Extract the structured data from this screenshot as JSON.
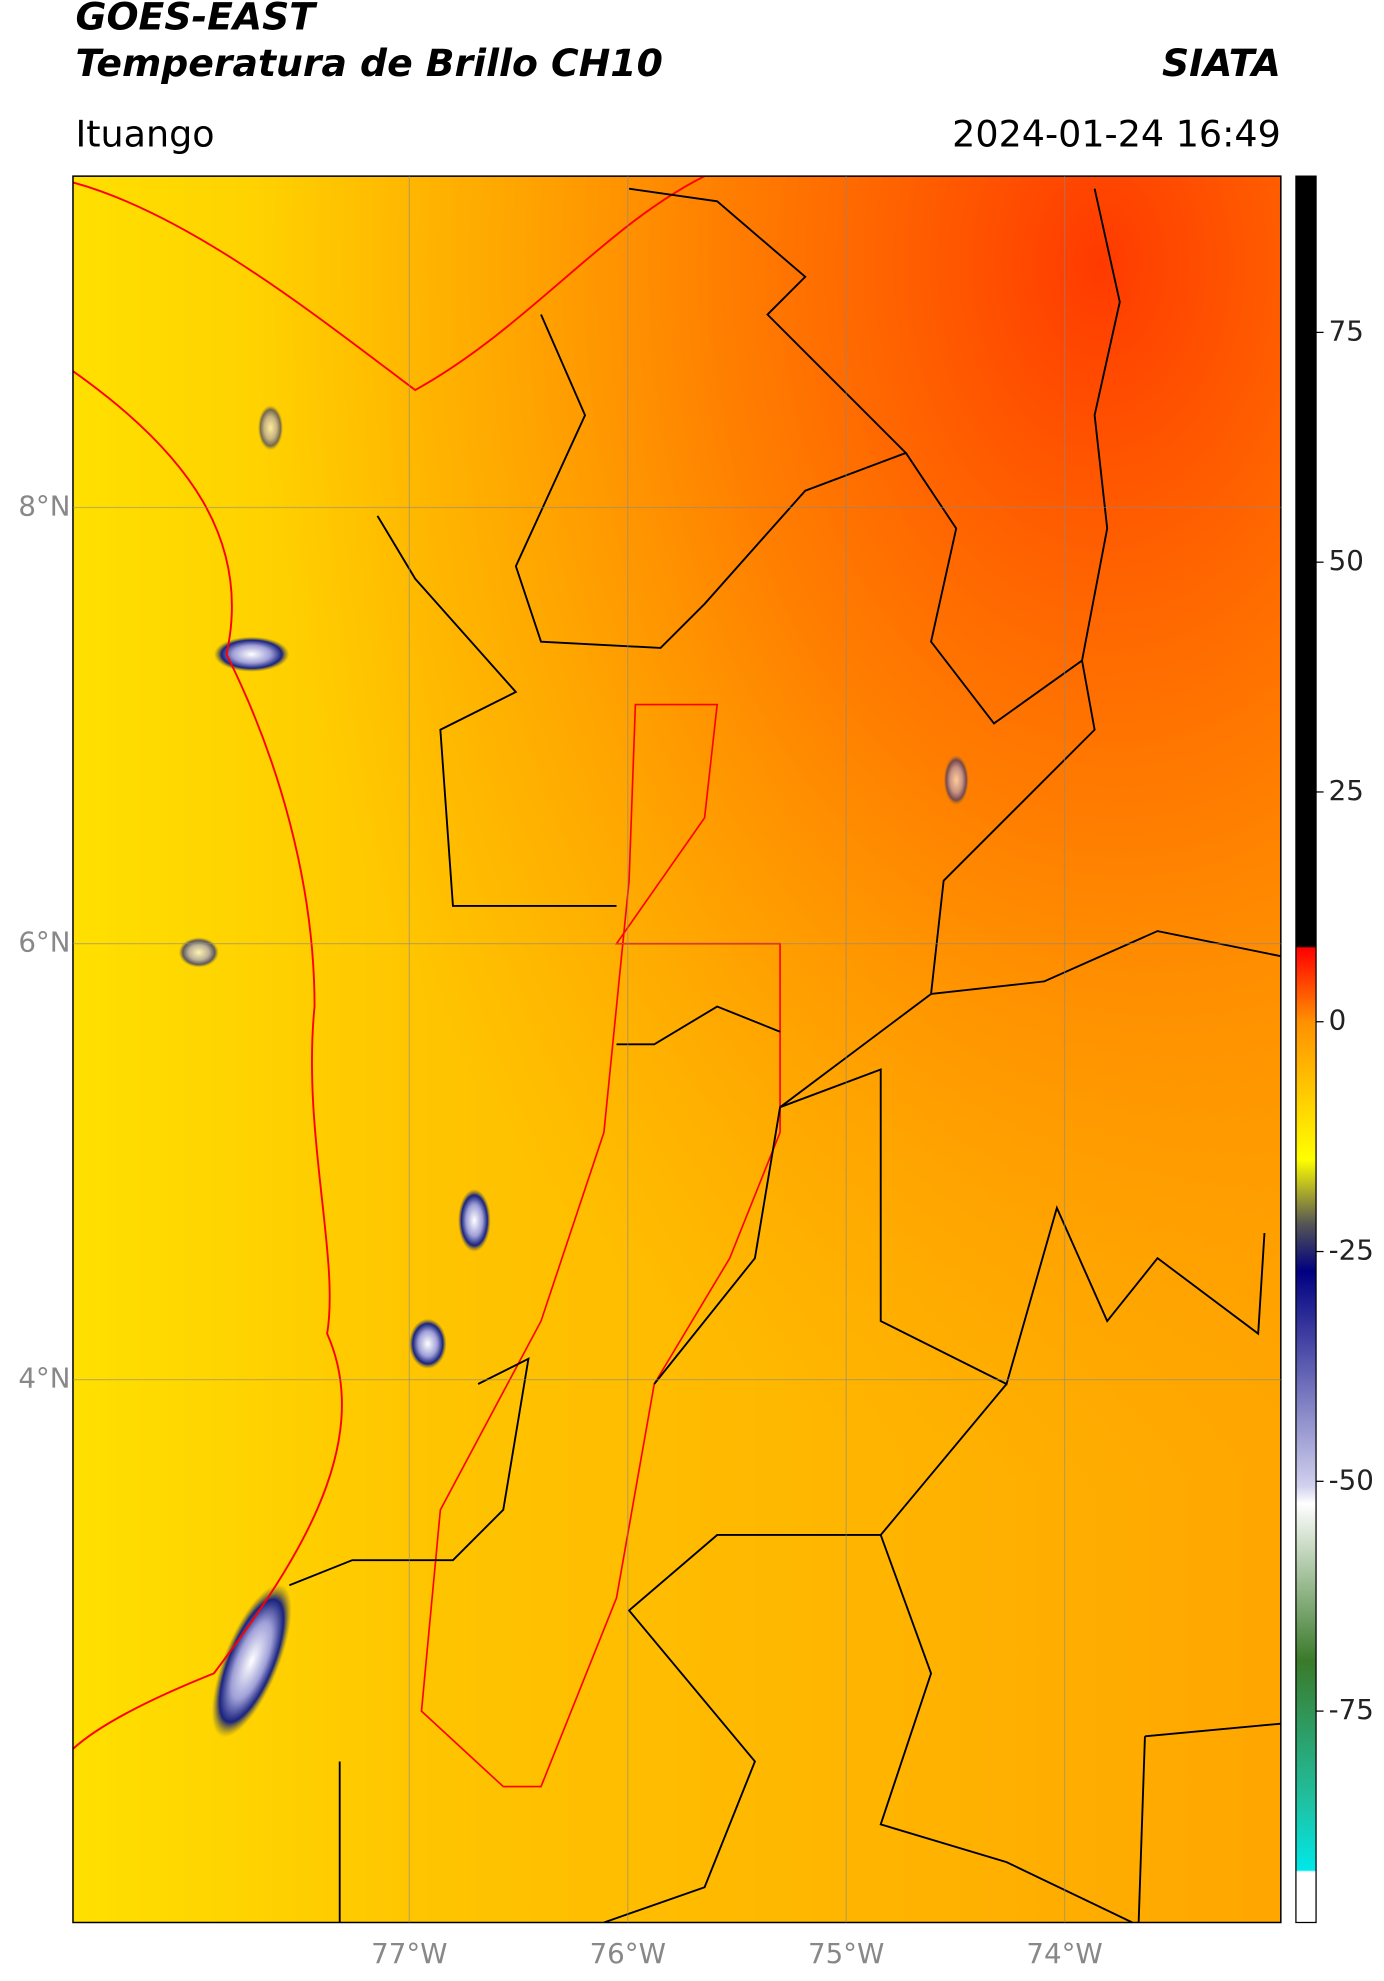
{
  "header": {
    "title": "GOES-EAST",
    "subtitle": "Temperatura de Brillo CH10",
    "source": "SIATA",
    "location": "Ituango",
    "datetime": "2024-01-24 16:49"
  },
  "map": {
    "xlim": [
      -78.54,
      -73.01
    ],
    "ylim": [
      1.51,
      9.52
    ],
    "xticks": [
      {
        "value": -77,
        "label": "77°W"
      },
      {
        "value": -76,
        "label": "76°W"
      },
      {
        "value": -75,
        "label": "75°W"
      },
      {
        "value": -74,
        "label": "74°W"
      }
    ],
    "yticks": [
      {
        "value": 8,
        "label": "8°N"
      },
      {
        "value": 6,
        "label": "6°N"
      },
      {
        "value": 4,
        "label": "4°N"
      }
    ],
    "grid": true
  },
  "colorbar": {
    "lim": [
      -98,
      92
    ],
    "ticks": [
      75,
      50,
      25,
      0,
      -25,
      -50,
      -75
    ]
  }
}
